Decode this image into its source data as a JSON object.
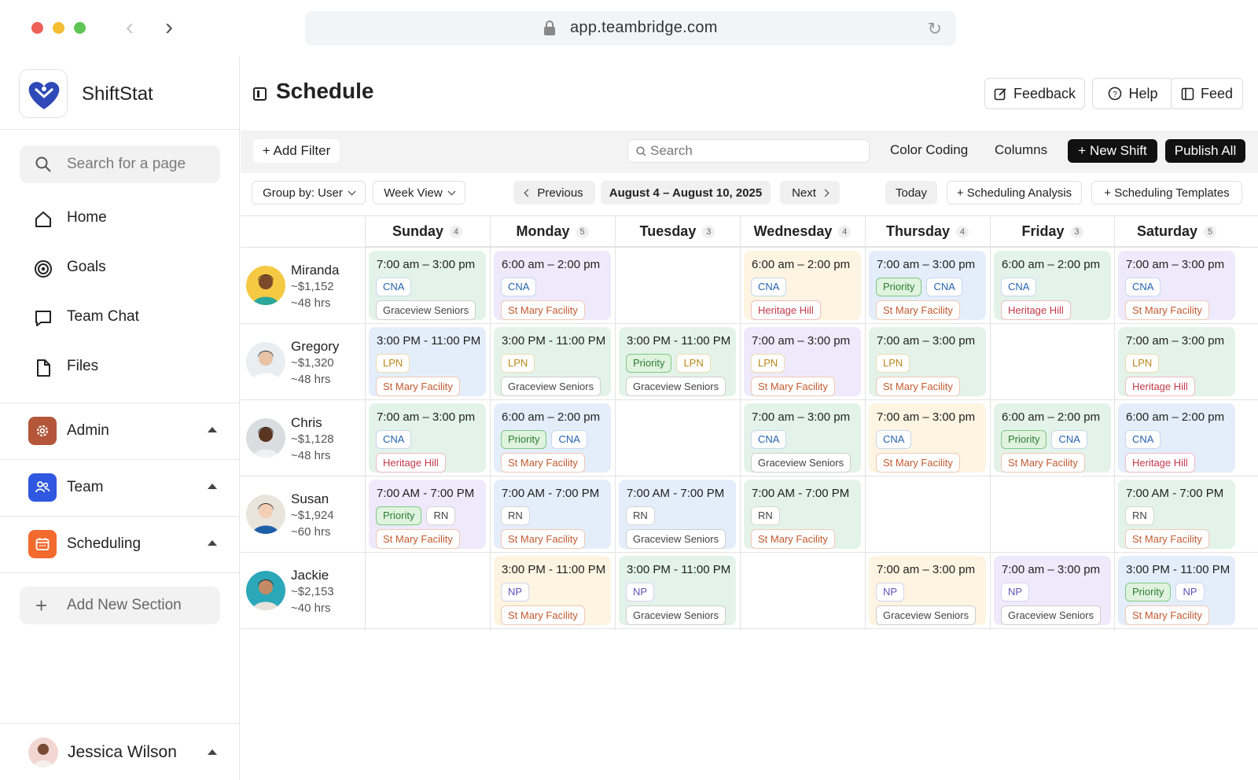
{
  "browser": {
    "url": "app.teambridge.com"
  },
  "sidebar": {
    "brand": "ShiftStat",
    "search_placeholder": "Search for a page",
    "nav": [
      {
        "label": "Home",
        "icon": "home-icon"
      },
      {
        "label": "Goals",
        "icon": "target-icon"
      },
      {
        "label": "Team Chat",
        "icon": "chat-icon"
      },
      {
        "label": "Files",
        "icon": "file-icon"
      }
    ],
    "sections": [
      {
        "label": "Admin",
        "icon": "gear-icon",
        "color": "#b3563a"
      },
      {
        "label": "Team",
        "icon": "people-icon",
        "color": "#2f57e0"
      },
      {
        "label": "Scheduling",
        "icon": "calendar-icon",
        "color": "#f26a2e"
      }
    ],
    "add_section": "Add New Section",
    "user": "Jessica Wilson"
  },
  "header": {
    "title": "Schedule",
    "buttons": [
      "Feedback",
      "Help",
      "Feed"
    ]
  },
  "toolbar": {
    "add_filter": "+ Add Filter",
    "search_placeholder": "Search",
    "color_coding": "Color Coding",
    "columns": "Columns",
    "new_shift": "+ New Shift",
    "publish_all": "Publish All"
  },
  "controls": {
    "group_by": "Group by: User",
    "view": "Week View",
    "previous": "Previous",
    "range": "August 4 – August 10, 2025",
    "next": "Next",
    "today": "Today",
    "analysis": "+ Scheduling Analysis",
    "templates": "+ Scheduling Templates"
  },
  "days": [
    {
      "name": "Sunday",
      "count": "4"
    },
    {
      "name": "Monday",
      "count": "5"
    },
    {
      "name": "Tuesday",
      "count": "3"
    },
    {
      "name": "Wednesday",
      "count": "4"
    },
    {
      "name": "Thursday",
      "count": "4"
    },
    {
      "name": "Friday",
      "count": "3"
    },
    {
      "name": "Saturday",
      "count": "5"
    }
  ],
  "people": [
    {
      "name": "Miranda",
      "pay": "~$1,152",
      "hours": "~48 hrs",
      "shifts": [
        {
          "time": "7:00 am – 3:00 pm",
          "tags": [
            "CNA"
          ],
          "location": "Graceview Seniors",
          "bg": "green"
        },
        {
          "time": "6:00 am – 2:00 pm",
          "tags": [
            "CNA"
          ],
          "location": "St Mary Facility",
          "bg": "purple"
        },
        null,
        {
          "time": "6:00 am – 2:00 pm",
          "tags": [
            "CNA"
          ],
          "location": "Heritage Hill",
          "bg": "yellow"
        },
        {
          "time": "7:00 am – 3:00 pm",
          "tags": [
            "Priority",
            "CNA"
          ],
          "location": "St Mary Facility",
          "bg": "blue"
        },
        {
          "time": "6:00 am – 2:00 pm",
          "tags": [
            "CNA"
          ],
          "location": "Heritage Hill",
          "bg": "green"
        },
        {
          "time": "7:00 am – 3:00 pm",
          "tags": [
            "CNA"
          ],
          "location": "St Mary Facility",
          "bg": "purple"
        }
      ]
    },
    {
      "name": "Gregory",
      "pay": "~$1,320",
      "hours": "~48 hrs",
      "shifts": [
        {
          "time": "3:00 PM - 11:00 PM",
          "tags": [
            "LPN"
          ],
          "location": "St Mary Facility",
          "bg": "blue"
        },
        {
          "time": "3:00 PM - 11:00 PM",
          "tags": [
            "LPN"
          ],
          "location": "Graceview Seniors",
          "bg": "green"
        },
        {
          "time": "3:00 PM - 11:00 PM",
          "tags": [
            "Priority",
            "LPN"
          ],
          "location": "Graceview Seniors",
          "bg": "green"
        },
        {
          "time": "7:00 am – 3:00 pm",
          "tags": [
            "LPN"
          ],
          "location": "St Mary Facility",
          "bg": "purple"
        },
        {
          "time": "7:00 am – 3:00 pm",
          "tags": [
            "LPN"
          ],
          "location": "St Mary Facility",
          "bg": "green"
        },
        null,
        {
          "time": "7:00 am – 3:00 pm",
          "tags": [
            "LPN"
          ],
          "location": "Heritage Hill",
          "bg": "green"
        }
      ]
    },
    {
      "name": "Chris",
      "pay": "~$1,128",
      "hours": "~48 hrs",
      "shifts": [
        {
          "time": "7:00 am – 3:00 pm",
          "tags": [
            "CNA"
          ],
          "location": "Heritage Hill",
          "bg": "green"
        },
        {
          "time": "6:00 am – 2:00 pm",
          "tags": [
            "Priority",
            "CNA"
          ],
          "location": "St Mary Facility",
          "bg": "blue"
        },
        null,
        {
          "time": "7:00 am – 3:00 pm",
          "tags": [
            "CNA"
          ],
          "location": "Graceview Seniors",
          "bg": "green"
        },
        {
          "time": "7:00 am – 3:00 pm",
          "tags": [
            "CNA"
          ],
          "location": "St Mary Facility",
          "bg": "yellow"
        },
        {
          "time": "6:00 am – 2:00 pm",
          "tags": [
            "Priority",
            "CNA"
          ],
          "location": "St Mary Facility",
          "bg": "green"
        },
        {
          "time": "6:00 am – 2:00 pm",
          "tags": [
            "CNA"
          ],
          "location": "Heritage Hill",
          "bg": "blue"
        }
      ]
    },
    {
      "name": "Susan",
      "pay": "~$1,924",
      "hours": "~60 hrs",
      "shifts": [
        {
          "time": "7:00 AM - 7:00 PM",
          "tags": [
            "Priority",
            "RN"
          ],
          "location": "St Mary Facility",
          "bg": "purple"
        },
        {
          "time": "7:00 AM - 7:00 PM",
          "tags": [
            "RN"
          ],
          "location": "St Mary Facility",
          "bg": "blue"
        },
        {
          "time": "7:00 AM - 7:00 PM",
          "tags": [
            "RN"
          ],
          "location": "Graceview Seniors",
          "bg": "blue"
        },
        {
          "time": "7:00 AM - 7:00 PM",
          "tags": [
            "RN"
          ],
          "location": "St Mary Facility",
          "bg": "green"
        },
        null,
        null,
        {
          "time": "7:00 AM - 7:00 PM",
          "tags": [
            "RN"
          ],
          "location": "St Mary Facility",
          "bg": "green"
        }
      ]
    },
    {
      "name": "Jackie",
      "pay": "~$2,153",
      "hours": "~40 hrs",
      "shifts": [
        null,
        {
          "time": "3:00 PM - 11:00 PM",
          "tags": [
            "NP"
          ],
          "location": "St Mary Facility",
          "bg": "yellow"
        },
        {
          "time": "3:00 PM - 11:00 PM",
          "tags": [
            "NP"
          ],
          "location": "Graceview Seniors",
          "bg": "green"
        },
        null,
        {
          "time": "7:00 am – 3:00 pm",
          "tags": [
            "NP"
          ],
          "location": "Graceview Seniors",
          "bg": "yellow"
        },
        {
          "time": "7:00 am – 3:00 pm",
          "tags": [
            "NP"
          ],
          "location": "Graceview Seniors",
          "bg": "purple"
        },
        {
          "time": "3:00 PM - 11:00 PM",
          "tags": [
            "Priority",
            "NP"
          ],
          "location": "St Mary Facility",
          "bg": "blue"
        }
      ]
    }
  ]
}
